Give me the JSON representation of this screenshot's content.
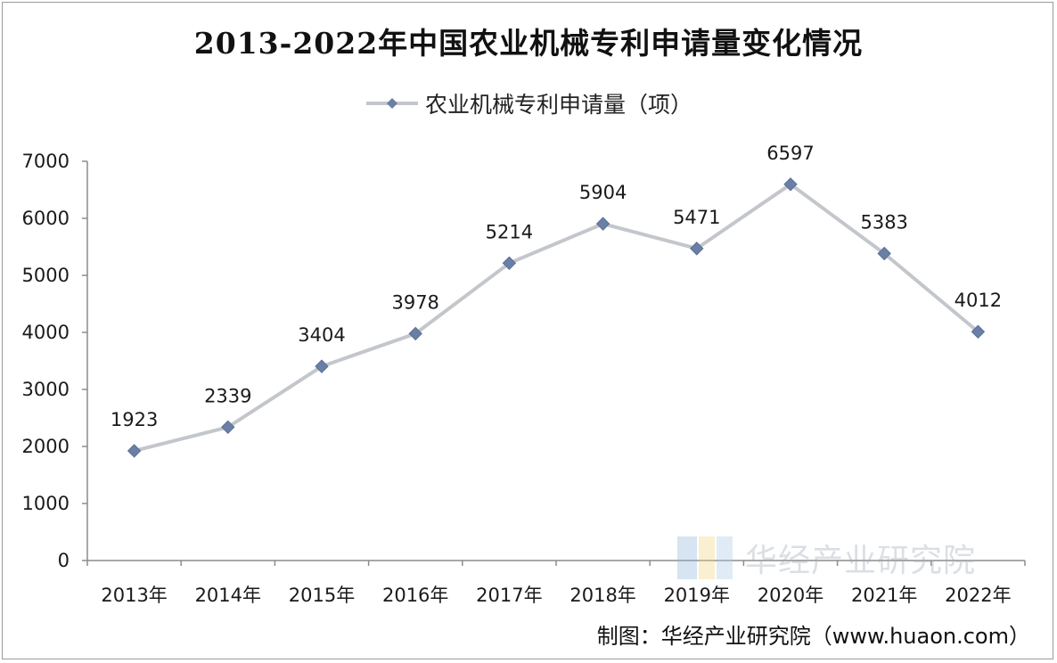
{
  "chart_data": {
    "type": "line",
    "title": "2013-2022年中国农业机械专利申请量变化情况",
    "categories": [
      "2013年",
      "2014年",
      "2015年",
      "2016年",
      "2017年",
      "2018年",
      "2019年",
      "2020年",
      "2021年",
      "2022年"
    ],
    "series": [
      {
        "name": "农业机械专利申请量（项）",
        "values": [
          1923,
          2339,
          3404,
          3978,
          5214,
          5904,
          5471,
          6597,
          5383,
          4012
        ],
        "data_labels": [
          "1923",
          "2339",
          "3404",
          "3978",
          "5214",
          "5904",
          "5471",
          "6597",
          "5383",
          "4012"
        ],
        "line_color": "#c3c6cb",
        "marker_color": "#6a7fa6",
        "marker": "diamond"
      }
    ],
    "y_ticks": [
      "0",
      "1000",
      "2000",
      "3000",
      "4000",
      "5000",
      "6000",
      "7000"
    ],
    "ylim": [
      0,
      7000
    ],
    "grid": false,
    "legend_position": "top-center"
  },
  "watermark": "华经产业研究院",
  "source": "制图：华经产业研究院（www.huaon.com）"
}
